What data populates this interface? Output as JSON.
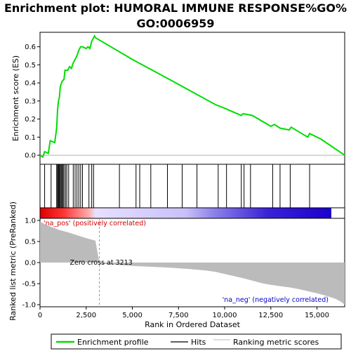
{
  "title_line1": "Enrichment plot: HUMORAL IMMUNE RESPONSE%GO%",
  "title_line2": "GO:0006959",
  "colors": {
    "es_line": "#00dd00",
    "hit_line": "#000000",
    "metric_fill": "#bbbbbb",
    "pos_text": "#cc0000",
    "neg_text": "#0000cc",
    "heat_red": "#dd0000",
    "heat_blue": "#1a00cc"
  },
  "legend": {
    "items": [
      {
        "label": "Enrichment profile",
        "color": "#00dd00"
      },
      {
        "label": "Hits",
        "color": "#000000"
      },
      {
        "label": "Ranking metric scores",
        "color": "#bbbbbb"
      }
    ]
  },
  "chart_data": [
    {
      "type": "line",
      "name": "enrichment-profile",
      "ylabel": "Enrichment score (ES)",
      "xlim": [
        0,
        16500
      ],
      "ylim": [
        -0.05,
        0.68
      ],
      "y_ticks": [
        "0.0",
        "0.1",
        "0.2",
        "0.3",
        "0.4",
        "0.5",
        "0.6"
      ],
      "x": [
        0,
        150,
        250,
        450,
        550,
        800,
        900,
        950,
        1000,
        1050,
        1100,
        1200,
        1300,
        1350,
        1500,
        1600,
        1700,
        1800,
        1900,
        2000,
        2100,
        2200,
        2300,
        2500,
        2600,
        2700,
        2800,
        2900,
        2950,
        3000,
        5000,
        7000,
        9500,
        10000,
        10900,
        11000,
        11500,
        12500,
        12700,
        13000,
        13500,
        13600,
        14500,
        14600,
        15200,
        16500
      ],
      "es": [
        0.0,
        -0.01,
        0.02,
        0.01,
        0.08,
        0.07,
        0.15,
        0.25,
        0.3,
        0.32,
        0.38,
        0.41,
        0.42,
        0.47,
        0.47,
        0.49,
        0.48,
        0.51,
        0.53,
        0.55,
        0.58,
        0.6,
        0.6,
        0.59,
        0.6,
        0.59,
        0.63,
        0.65,
        0.66,
        0.65,
        0.53,
        0.42,
        0.28,
        0.26,
        0.22,
        0.23,
        0.22,
        0.16,
        0.17,
        0.15,
        0.14,
        0.155,
        0.1,
        0.12,
        0.09,
        0.0
      ]
    },
    {
      "type": "hits",
      "name": "hits",
      "positions": [
        250,
        600,
        900,
        950,
        980,
        1020,
        1060,
        1100,
        1150,
        1200,
        1250,
        1300,
        1380,
        1450,
        1550,
        1800,
        1900,
        2000,
        2100,
        2200,
        2300,
        2650,
        2800,
        2900,
        4300,
        5200,
        5400,
        6000,
        6900,
        7700,
        8500,
        9650,
        10100,
        10900,
        11050,
        11400,
        12600,
        13000,
        13550,
        14600
      ]
    },
    {
      "type": "area",
      "name": "ranking-metric",
      "xlabel": "Rank in Ordered Dataset",
      "ylabel": "Ranked list metric (PreRanked)",
      "xlim": [
        0,
        16500
      ],
      "ylim": [
        -1.05,
        1.05
      ],
      "x_ticks": [
        "0",
        "2,500",
        "5,000",
        "7,500",
        "10,000",
        "12,500",
        "15,000"
      ],
      "y_ticks": [
        "1.0",
        "0.5",
        "0.0",
        "-0.5",
        "-1.0"
      ],
      "x": [
        0,
        100,
        300,
        600,
        1000,
        1500,
        2000,
        2500,
        3000,
        3213,
        3300,
        4000,
        5000,
        6000,
        7000,
        8000,
        9000,
        9500,
        10000,
        10500,
        11000,
        11500,
        12000,
        12500,
        13000,
        13500,
        14000,
        14500,
        15000,
        15500,
        16000,
        16300,
        16500
      ],
      "values": [
        0.98,
        0.95,
        0.9,
        0.85,
        0.78,
        0.72,
        0.65,
        0.58,
        0.52,
        0.0,
        -0.03,
        -0.05,
        -0.08,
        -0.1,
        -0.12,
        -0.15,
        -0.19,
        -0.22,
        -0.27,
        -0.32,
        -0.37,
        -0.43,
        -0.49,
        -0.53,
        -0.56,
        -0.59,
        -0.63,
        -0.68,
        -0.73,
        -0.79,
        -0.86,
        -0.93,
        -1.0
      ],
      "zero_cross": 3213,
      "zero_cross_label": "Zero cross at 3213",
      "pos_label": "'na_pos' (positively correlated)",
      "neg_label": "'na_neg' (negatively correlated)"
    }
  ]
}
